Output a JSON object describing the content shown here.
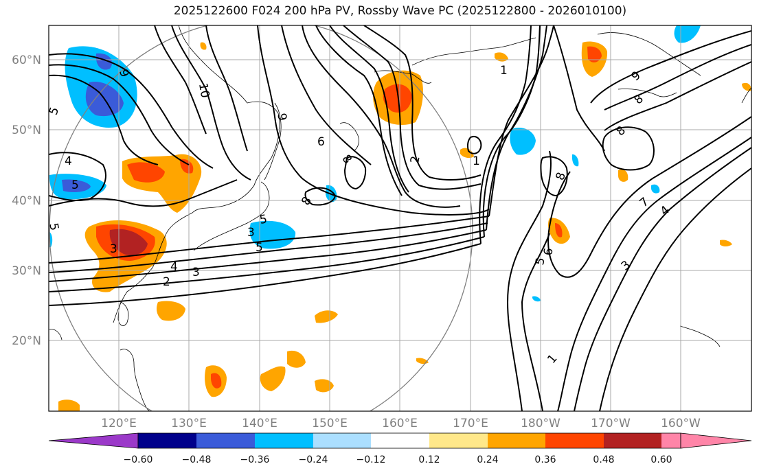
{
  "title": "2025122600 F024 200 hPa PV, Rossby Wave PC (2025122800 - 2026010100)",
  "map": {
    "lat_labels": [
      "60°N",
      "50°N",
      "40°N",
      "30°N",
      "20°N"
    ],
    "lon_labels": [
      "120°E",
      "130°E",
      "140°E",
      "150°E",
      "160°E",
      "170°E",
      "180°W",
      "170°W",
      "160°W"
    ],
    "extent": {
      "lon_min": 110,
      "lon_max": 210,
      "lat_min": 10,
      "lat_max": 65
    },
    "contour_labels": [
      "10",
      "9",
      "9",
      "6",
      "8",
      "8",
      "4",
      "5",
      "5",
      "2",
      "1",
      "1",
      "4",
      "3",
      "2",
      "5",
      "5",
      "3",
      "8",
      "8",
      "9",
      "8",
      "7",
      "4",
      "3",
      "5",
      "6",
      "1",
      "5",
      "3"
    ],
    "colors": {
      "grid": "#a9a9a9",
      "contour": "#000000",
      "circle": "#808080"
    }
  },
  "colorbar": {
    "levels": [
      "−0.60",
      "−0.48",
      "−0.36",
      "−0.24",
      "−0.12",
      "0.12",
      "0.24",
      "0.36",
      "0.48",
      "0.60"
    ],
    "colors": [
      "#9b39c9",
      "#00008b",
      "#3a5bd9",
      "#00bfff",
      "#abdfff",
      "#ffffff",
      "#ffe88a",
      "#ffa500",
      "#ff4500",
      "#b22222",
      "#ff85a8"
    ]
  }
}
